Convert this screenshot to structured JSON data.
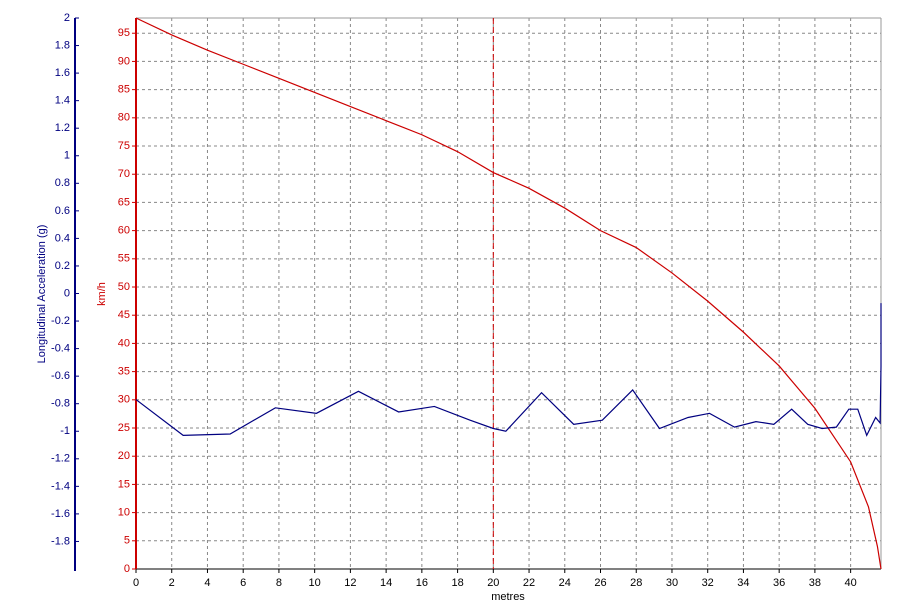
{
  "chart_data": {
    "type": "line",
    "x_label": "metres",
    "y_label": "km/h",
    "y2_label": "Longitudinal Acceleration (g)",
    "xlim": [
      0,
      41.7
    ],
    "xticks": [
      0,
      2,
      4,
      6,
      8,
      10,
      12,
      14,
      16,
      18,
      20,
      22,
      24,
      26,
      28,
      30,
      32,
      34,
      36,
      38,
      40
    ],
    "ylim": [
      0,
      97.7
    ],
    "yticks": [
      0,
      5,
      10,
      15,
      20,
      25,
      30,
      35,
      40,
      45,
      50,
      55,
      60,
      65,
      70,
      75,
      80,
      85,
      90,
      95
    ],
    "y2lim": [
      -2,
      2
    ],
    "y2ticks": [
      2,
      1.8,
      1.6,
      1.4,
      1.2,
      1,
      0.8,
      0.6,
      0.4,
      0.2,
      0,
      -0.2,
      -0.4,
      -0.6,
      -0.8,
      -1,
      -1.2,
      -1.4,
      -1.6,
      -1.8
    ],
    "grid": true,
    "cursor_x": 20,
    "series": [
      {
        "color": "#cc0000",
        "x": [
          0,
          2,
          4,
          6,
          8,
          10,
          12,
          14,
          16,
          18,
          20,
          22,
          24,
          26,
          28,
          30,
          32,
          34,
          36,
          38,
          40,
          41,
          41.5,
          41.7
        ],
        "values": [
          97.7,
          94.7,
          92,
          89.5,
          87,
          84.5,
          82,
          79.5,
          77,
          74,
          70.3,
          67.5,
          64,
          60,
          57,
          52.5,
          47.5,
          42,
          36,
          28.5,
          19,
          11,
          4,
          0
        ]
      },
      {
        "color": "#000080",
        "axis": "y2",
        "x": [
          0,
          2.64,
          5.27,
          7.8,
          10.1,
          12.45,
          14.7,
          16.7,
          18.7,
          20,
          20.7,
          22.7,
          24.5,
          26.1,
          27.8,
          29.3,
          30.9,
          32.1,
          33.5,
          34.7,
          35.7,
          36.7,
          37.6,
          38.4,
          39.2,
          39.9,
          40.4,
          40.9,
          41.4,
          41.65,
          41.7,
          41.7
        ],
        "values": [
          -0.77,
          -1.03,
          -1.02,
          -0.83,
          -0.87,
          -0.71,
          -0.86,
          -0.82,
          -0.92,
          -0.98,
          -1.0,
          -0.72,
          -0.95,
          -0.92,
          -0.7,
          -0.98,
          -0.9,
          -0.87,
          -0.97,
          -0.93,
          -0.95,
          -0.84,
          -0.95,
          -0.98,
          -0.97,
          -0.84,
          -0.84,
          -1.03,
          -0.9,
          -0.94,
          -0.53,
          -0.07
        ]
      }
    ]
  }
}
